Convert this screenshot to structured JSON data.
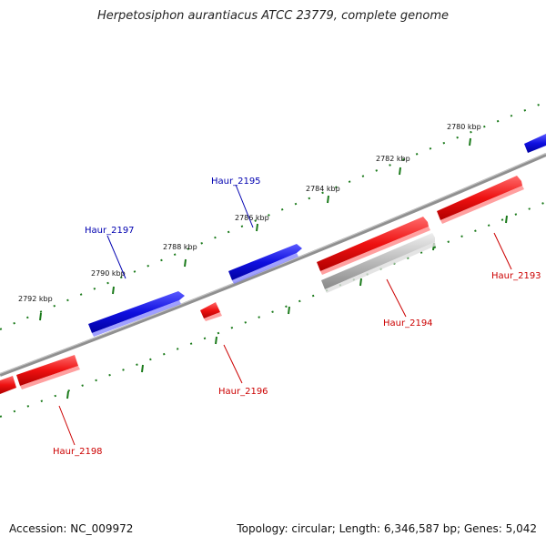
{
  "title": "Herpetosiphon aurantiacus ATCC 23779, complete genome",
  "footer": {
    "accession": "Accession: NC_009972",
    "summary": "Topology: circular; Length: 6,346,587 bp; Genes: 5,042"
  },
  "ticks": [
    {
      "label": "2780 kbp"
    },
    {
      "label": "2782 kbp"
    },
    {
      "label": "2784 kbp"
    },
    {
      "label": "2786 kbp"
    },
    {
      "label": "2788 kbp"
    },
    {
      "label": "2790 kbp"
    },
    {
      "label": "2792 kbp"
    }
  ],
  "genes": [
    {
      "label": "Haur_2193",
      "strand": "reverse",
      "color": "#cc0000"
    },
    {
      "label": "Haur_2194",
      "strand": "reverse",
      "color": "#cc0000"
    },
    {
      "label": "Haur_2195",
      "strand": "forward",
      "color": "#0000b0"
    },
    {
      "label": "Haur_2196",
      "strand": "reverse",
      "color": "#cc0000"
    },
    {
      "label": "Haur_2197",
      "strand": "forward",
      "color": "#0000b0"
    },
    {
      "label": "Haur_2198",
      "strand": "reverse",
      "color": "#cc0000"
    }
  ],
  "colors": {
    "forward": "#1010e0",
    "reverse": "#ee1111",
    "pseudo": "#bbbbbb",
    "backbone": "#808080",
    "tick": "#1a7a1a"
  }
}
